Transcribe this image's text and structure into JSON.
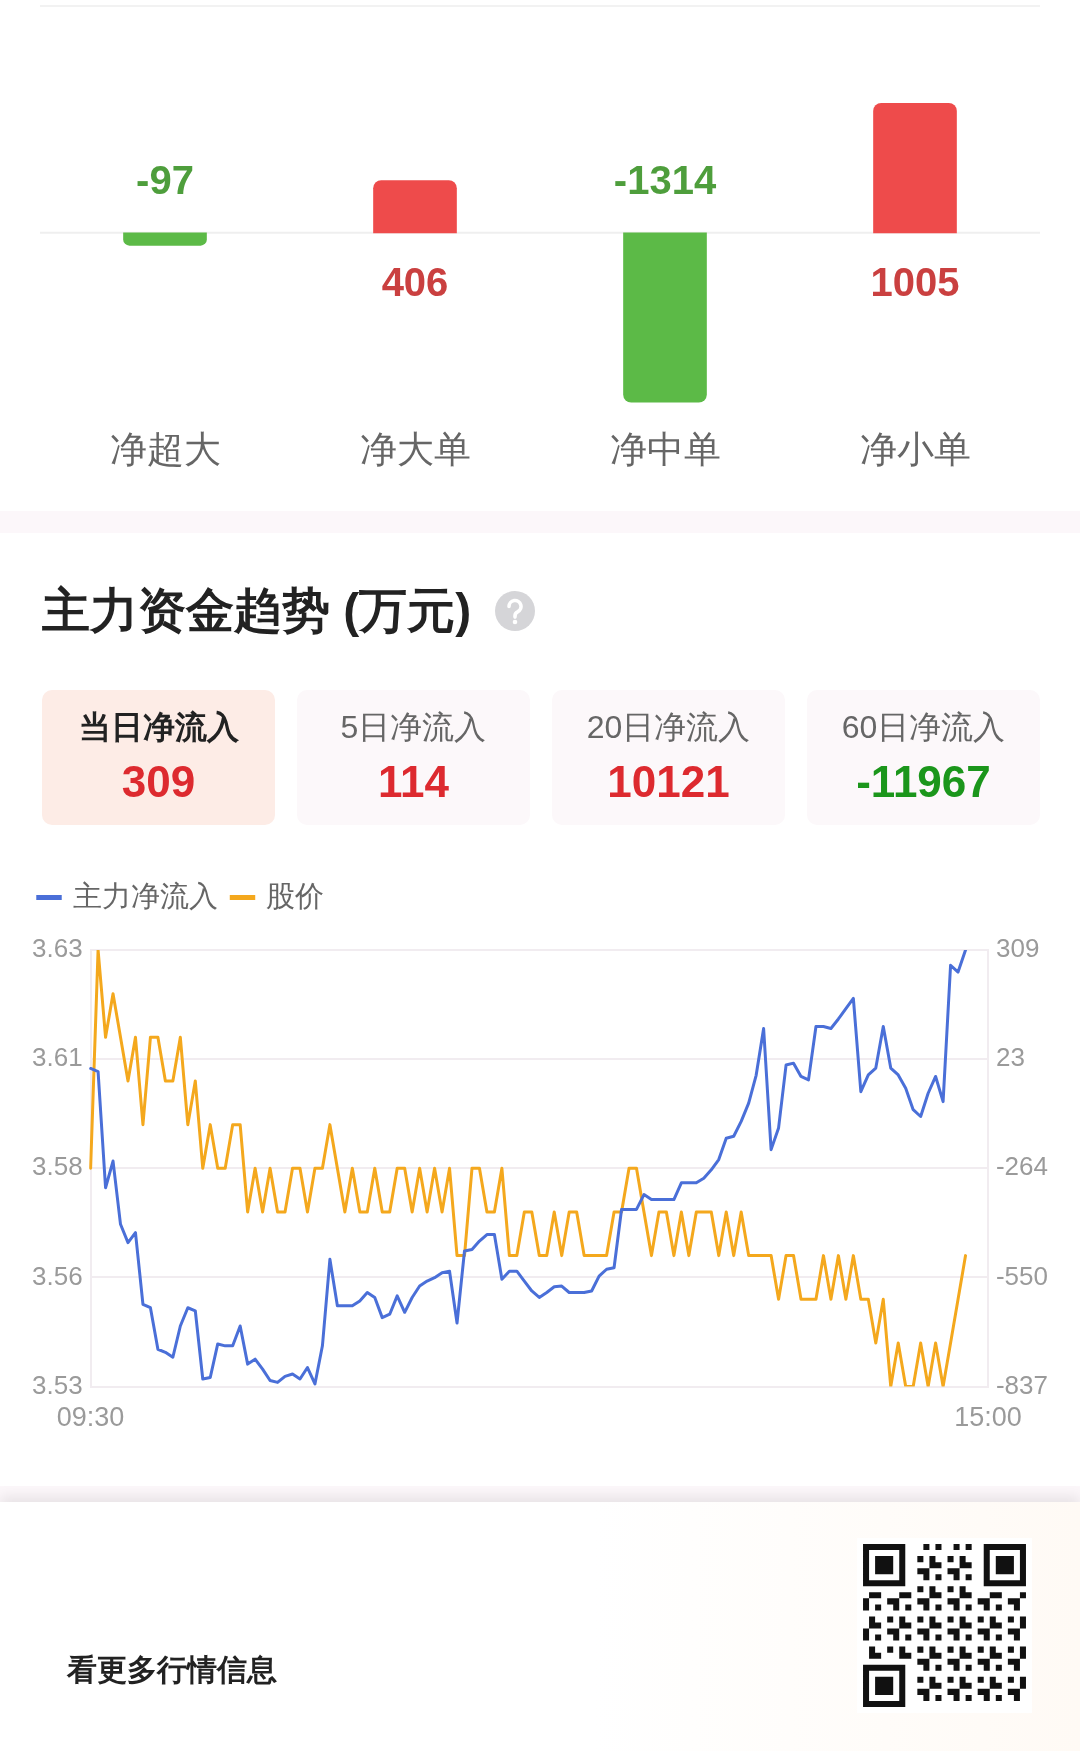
{
  "chart_data": [
    {
      "type": "bar",
      "categories": [
        "净超大",
        "净大单",
        "净中单",
        "净小单"
      ],
      "values": [
        -97,
        406,
        -1314,
        1005
      ],
      "colors": [
        "#5cba47",
        "#ee4b4b",
        "#5cba47",
        "#ee4b4b"
      ],
      "data_labels": true
    },
    {
      "type": "other",
      "title": "主力资金趋势 (万元)",
      "categories": [
        "当日净流入",
        "5日净流入",
        "20日净流入",
        "60日净流入"
      ],
      "values": [
        309,
        114,
        10121,
        -11967
      ],
      "data_labels": true
    },
    {
      "type": "line",
      "categories": [
        "09:30",
        null,
        null,
        null,
        null,
        null,
        null,
        null,
        null,
        null,
        null,
        null,
        null,
        null,
        null,
        null,
        null,
        null,
        null,
        null,
        null,
        null,
        null,
        null,
        null,
        null,
        null,
        null,
        null,
        null,
        null,
        null,
        null,
        null,
        null,
        null,
        null,
        null,
        null,
        null,
        null,
        null,
        null,
        null,
        null,
        null,
        null,
        null,
        null,
        null,
        null,
        null,
        null,
        null,
        null,
        null,
        null,
        null,
        null,
        null,
        null,
        null,
        null,
        null,
        null,
        null,
        null,
        null,
        null,
        null,
        null,
        null,
        null,
        null,
        null,
        null,
        null,
        null,
        null,
        null,
        null,
        null,
        null,
        null,
        null,
        null,
        null,
        null,
        null,
        null,
        null,
        null,
        null,
        null,
        null,
        null,
        null,
        null,
        null,
        null,
        null,
        null,
        null,
        null,
        null,
        null,
        null,
        null,
        null,
        null,
        null,
        null,
        null,
        null,
        null,
        null,
        null,
        null,
        null,
        null,
        "15:00"
      ],
      "series": [
        {
          "name": "主力净流入",
          "color": "#4a6fd8",
          "axis": "y2",
          "values": [
            -2,
            -10,
            -315,
            -245,
            -411,
            -459,
            -433,
            -621,
            -630,
            -739,
            -747,
            -760,
            -678,
            -630,
            -638,
            -817,
            -813,
            -725,
            -730,
            -730,
            -678,
            -778,
            -765,
            -791,
            -821,
            -826,
            -810,
            -804,
            -817,
            -787,
            -830,
            -730,
            -503,
            -625,
            -625,
            -625,
            -612,
            -590,
            -603,
            -656,
            -647,
            -599,
            -642,
            -603,
            -573,
            -560,
            -551,
            -538,
            -534,
            -670,
            -481,
            -477,
            -455,
            -438,
            -438,
            -555,
            -534,
            -534,
            -560,
            -586,
            -603,
            -590,
            -575,
            -573,
            -590,
            -590,
            -590,
            -586,
            -547,
            -529,
            -525,
            -372,
            -372,
            -372,
            -333,
            -346,
            -346,
            -346,
            -346,
            -302,
            -302,
            -302,
            -290,
            -268,
            -241,
            -185,
            -180,
            -141,
            -93,
            -20,
            103,
            -215,
            -158,
            7,
            12,
            -23,
            -32,
            108,
            108,
            103,
            128,
            155,
            182,
            -63,
            -19,
            -1,
            108,
            -1,
            -19,
            -54,
            -110,
            -128,
            -67,
            -23,
            -89,
            269,
            251,
            309,
            null,
            null,
            null
          ]
        },
        {
          "name": "股价",
          "color": "#f4a81d",
          "values": [
            3.58,
            3.63,
            3.61,
            3.62,
            3.61,
            3.6,
            3.61,
            3.59,
            3.61,
            3.61,
            3.6,
            3.6,
            3.61,
            3.59,
            3.6,
            3.58,
            3.59,
            3.58,
            3.58,
            3.59,
            3.59,
            3.57,
            3.58,
            3.57,
            3.58,
            3.57,
            3.57,
            3.58,
            3.58,
            3.57,
            3.58,
            3.58,
            3.59,
            3.58,
            3.57,
            3.58,
            3.57,
            3.57,
            3.58,
            3.57,
            3.57,
            3.58,
            3.58,
            3.57,
            3.58,
            3.57,
            3.58,
            3.57,
            3.58,
            3.56,
            3.56,
            3.58,
            3.58,
            3.57,
            3.57,
            3.58,
            3.56,
            3.56,
            3.57,
            3.57,
            3.56,
            3.56,
            3.57,
            3.56,
            3.57,
            3.57,
            3.56,
            3.56,
            3.56,
            3.56,
            3.57,
            3.57,
            3.58,
            3.58,
            3.57,
            3.56,
            3.57,
            3.57,
            3.56,
            3.57,
            3.56,
            3.57,
            3.57,
            3.57,
            3.56,
            3.57,
            3.56,
            3.57,
            3.56,
            3.56,
            3.56,
            3.56,
            3.55,
            3.56,
            3.56,
            3.55,
            3.55,
            3.55,
            3.56,
            3.55,
            3.56,
            3.55,
            3.56,
            3.55,
            3.55,
            3.54,
            3.55,
            3.53,
            3.54,
            3.53,
            3.53,
            3.54,
            3.53,
            3.54,
            3.53,
            3.54,
            3.55,
            3.56,
            null,
            null,
            null
          ]
        }
      ],
      "ylim": [
        3.53,
        3.63
      ],
      "yticks": [
        3.63,
        {
          "value": 3.605,
          "label": "3.61"
        },
        3.58,
        {
          "value": 3.555,
          "label": "3.56"
        },
        3.53
      ],
      "y2lim": [
        -837,
        309
      ],
      "y2ticks": [
        309,
        {
          "value": 22.5,
          "label": "23"
        },
        -264,
        {
          "value": -550.5,
          "label": "-550"
        },
        -837
      ],
      "grid": "y",
      "legend": "top left",
      "annotations": [
        "看更多行情信息"
      ]
    }
  ]
}
